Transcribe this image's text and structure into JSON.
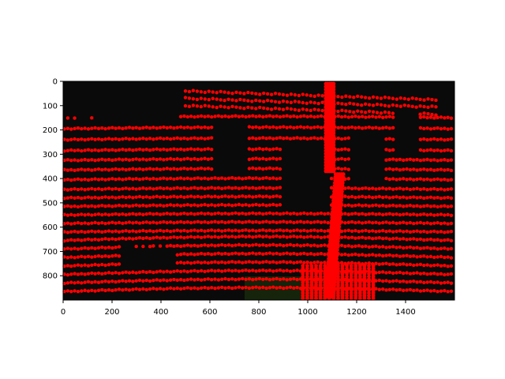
{
  "figure": {
    "background_color": "#ffffff",
    "image_background_color": "#0a0a0a",
    "point_color": "#ff0000",
    "ground_tint_color": "#1f3a0c"
  },
  "axes": {
    "x_range": [
      0,
      1600
    ],
    "y_range": [
      900,
      0
    ],
    "x_inverted": false,
    "y_inverted": true,
    "grid": false,
    "x_ticks": [
      0,
      200,
      400,
      600,
      800,
      1000,
      1200,
      1400
    ],
    "y_ticks": [
      0,
      100,
      200,
      300,
      400,
      500,
      600,
      700,
      800
    ],
    "x_tick_labels": [
      "0",
      "200",
      "400",
      "600",
      "800",
      "1000",
      "1200",
      "1400"
    ],
    "y_tick_labels": [
      "0",
      "100",
      "200",
      "300",
      "400",
      "500",
      "600",
      "700",
      "800"
    ]
  },
  "overlay": {
    "description_type": "lidar-scan-points-over-image",
    "row_bands_y": [
      150,
      195,
      240,
      285,
      325,
      365,
      405,
      445,
      480,
      515,
      550,
      585,
      620,
      655,
      690,
      725,
      760,
      795,
      830,
      865
    ],
    "upper_patch_rows_y": [
      55,
      85,
      115
    ]
  }
}
